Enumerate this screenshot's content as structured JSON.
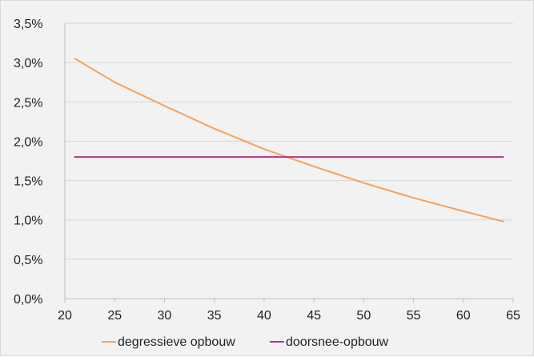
{
  "chart_data": {
    "type": "line",
    "title": "",
    "xlabel": "",
    "ylabel": "",
    "xlim": [
      20,
      65
    ],
    "ylim": [
      0,
      3.5
    ],
    "x_ticks": [
      20,
      25,
      30,
      35,
      40,
      45,
      50,
      55,
      60,
      65
    ],
    "x_tick_labels": [
      "20",
      "25",
      "30",
      "35",
      "40",
      "45",
      "50",
      "55",
      "60",
      "65"
    ],
    "y_ticks": [
      0,
      0.5,
      1,
      1.5,
      2,
      2.5,
      3,
      3.5
    ],
    "y_tick_labels": [
      "0,0%",
      "0,5%",
      "1,0%",
      "1,5%",
      "2,0%",
      "2,5%",
      "3,0%",
      "3,5%"
    ],
    "grid": "horizontal",
    "legend_position": "bottom",
    "series": [
      {
        "name": "degressieve opbouw",
        "color": "#f5a35a",
        "x": [
          21,
          25,
          30,
          35,
          40,
          42.5,
          45,
          50,
          55,
          60,
          64
        ],
        "y": [
          3.05,
          2.75,
          2.45,
          2.16,
          1.9,
          1.79,
          1.68,
          1.47,
          1.28,
          1.11,
          0.98
        ]
      },
      {
        "name": "doorsnee-opbouw",
        "color": "#b5358c",
        "x": [
          21,
          64
        ],
        "y": [
          1.8,
          1.8
        ]
      }
    ]
  }
}
